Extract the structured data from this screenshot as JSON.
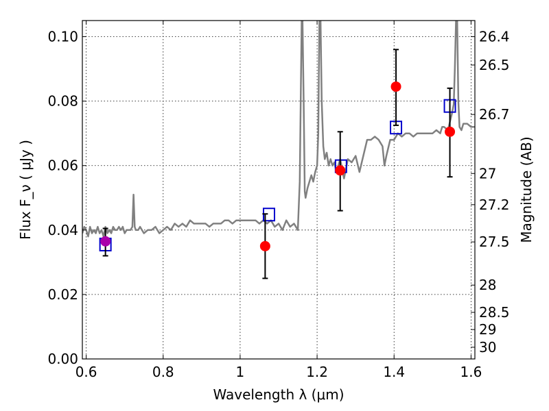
{
  "chart_data": {
    "type": "scatter",
    "title": "",
    "xlabel": "Wavelength  λ (μm)",
    "ylabel": "Flux  F_ν  ( μJy )",
    "ylabel_right": "Magnitude (AB)",
    "xlim": [
      0.59,
      1.61
    ],
    "ylim": [
      0.0,
      0.105
    ],
    "grid": true,
    "xticks": [
      "0.6",
      "0.8",
      "1",
      "1.2",
      "1.4",
      "1.6"
    ],
    "xtick_values": [
      0.6,
      0.8,
      1.0,
      1.2,
      1.4,
      1.6
    ],
    "yticks": [
      "0.00",
      "0.02",
      "0.04",
      "0.06",
      "0.08",
      "0.10"
    ],
    "ytick_values": [
      0.0,
      0.02,
      0.04,
      0.06,
      0.08,
      0.1
    ],
    "right_ticks": [
      "26.4",
      "26.5",
      "26.7",
      "27",
      "27.2",
      "27.5",
      "28",
      "28.5",
      "29",
      "30"
    ],
    "right_tick_values": [
      26.4,
      26.5,
      26.7,
      27.0,
      27.2,
      27.5,
      28.0,
      28.5,
      29.0,
      30.0
    ],
    "colors": {
      "spectrum": "#808080",
      "observed": "#ff0000",
      "model": "#0000cc",
      "errorbar": "#000000",
      "overlap_point": "#aa00aa"
    },
    "series": [
      {
        "kind": "spectrum-line",
        "x": [
          0.59,
          0.595,
          0.6,
          0.605,
          0.61,
          0.615,
          0.62,
          0.625,
          0.63,
          0.635,
          0.64,
          0.645,
          0.65,
          0.655,
          0.66,
          0.665,
          0.67,
          0.675,
          0.68,
          0.685,
          0.69,
          0.695,
          0.7,
          0.705,
          0.71,
          0.715,
          0.72,
          0.723,
          0.726,
          0.729,
          0.735,
          0.74,
          0.75,
          0.76,
          0.77,
          0.78,
          0.79,
          0.8,
          0.81,
          0.82,
          0.83,
          0.84,
          0.85,
          0.86,
          0.87,
          0.88,
          0.89,
          0.9,
          0.91,
          0.92,
          0.93,
          0.94,
          0.95,
          0.96,
          0.97,
          0.98,
          0.99,
          1.0,
          1.01,
          1.02,
          1.03,
          1.04,
          1.05,
          1.06,
          1.07,
          1.08,
          1.09,
          1.1,
          1.11,
          1.12,
          1.13,
          1.14,
          1.15,
          1.155,
          1.16,
          1.162,
          1.165,
          1.168,
          1.17,
          1.175,
          1.18,
          1.185,
          1.19,
          1.195,
          1.2,
          1.203,
          1.206,
          1.209,
          1.212,
          1.216,
          1.22,
          1.225,
          1.23,
          1.235,
          1.24,
          1.245,
          1.25,
          1.26,
          1.27,
          1.28,
          1.29,
          1.3,
          1.31,
          1.32,
          1.33,
          1.34,
          1.35,
          1.36,
          1.37,
          1.375,
          1.38,
          1.39,
          1.4,
          1.41,
          1.42,
          1.43,
          1.44,
          1.45,
          1.46,
          1.47,
          1.48,
          1.49,
          1.5,
          1.51,
          1.52,
          1.525,
          1.53,
          1.54,
          1.55,
          1.555,
          1.558,
          1.561,
          1.564,
          1.567,
          1.57,
          1.575,
          1.58,
          1.59,
          1.6,
          1.61
        ],
        "y": [
          0.039,
          0.041,
          0.04,
          0.038,
          0.041,
          0.039,
          0.04,
          0.039,
          0.041,
          0.039,
          0.04,
          0.038,
          0.041,
          0.039,
          0.04,
          0.039,
          0.041,
          0.04,
          0.04,
          0.041,
          0.04,
          0.041,
          0.039,
          0.04,
          0.04,
          0.04,
          0.041,
          0.051,
          0.041,
          0.04,
          0.04,
          0.041,
          0.039,
          0.04,
          0.04,
          0.041,
          0.039,
          0.04,
          0.041,
          0.04,
          0.042,
          0.041,
          0.042,
          0.041,
          0.043,
          0.042,
          0.042,
          0.042,
          0.042,
          0.041,
          0.042,
          0.042,
          0.042,
          0.043,
          0.043,
          0.042,
          0.043,
          0.043,
          0.043,
          0.043,
          0.043,
          0.043,
          0.042,
          0.043,
          0.042,
          0.043,
          0.041,
          0.042,
          0.04,
          0.043,
          0.041,
          0.042,
          0.04,
          0.055,
          0.105,
          0.105,
          0.08,
          0.052,
          0.05,
          0.053,
          0.055,
          0.057,
          0.055,
          0.058,
          0.06,
          0.07,
          0.105,
          0.105,
          0.08,
          0.066,
          0.062,
          0.064,
          0.06,
          0.062,
          0.06,
          0.061,
          0.058,
          0.062,
          0.056,
          0.062,
          0.061,
          0.063,
          0.058,
          0.063,
          0.068,
          0.068,
          0.069,
          0.068,
          0.066,
          0.06,
          0.063,
          0.068,
          0.068,
          0.07,
          0.069,
          0.07,
          0.07,
          0.069,
          0.07,
          0.07,
          0.07,
          0.07,
          0.07,
          0.071,
          0.07,
          0.072,
          0.072,
          0.071,
          0.076,
          0.079,
          0.09,
          0.105,
          0.105,
          0.08,
          0.072,
          0.071,
          0.073,
          0.073,
          0.072,
          0.072
        ]
      },
      {
        "kind": "observed-errorbar",
        "x": [
          0.65,
          1.065,
          1.26,
          1.405,
          1.545
        ],
        "y": [
          0.0365,
          0.035,
          0.0585,
          0.0845,
          0.0705
        ],
        "yerr_low": [
          0.0045,
          0.01,
          0.0125,
          0.012,
          0.014
        ],
        "yerr_high": [
          0.004,
          0.01,
          0.012,
          0.0115,
          0.0135
        ]
      },
      {
        "kind": "model-box",
        "x": [
          0.65,
          1.075,
          1.262,
          1.405,
          1.545
        ],
        "y": [
          0.0355,
          0.0448,
          0.0598,
          0.0718,
          0.0785
        ]
      }
    ]
  }
}
